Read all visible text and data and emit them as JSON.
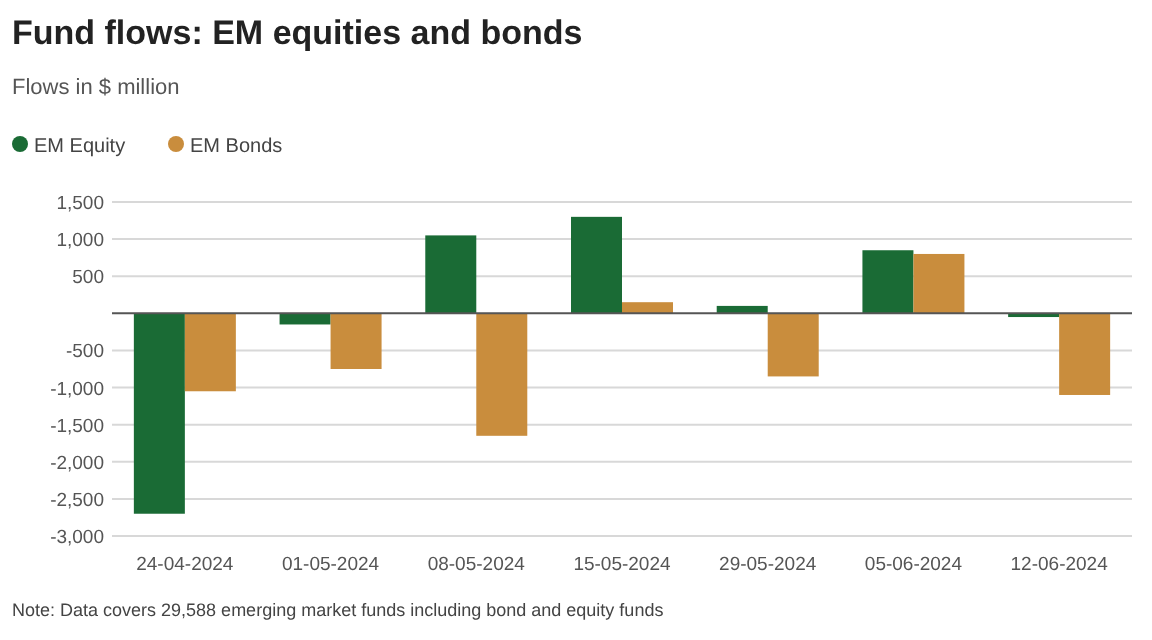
{
  "chart_data": {
    "type": "bar",
    "title": "Fund flows: EM equities and bonds",
    "subtitle": "Flows in $ million",
    "categories": [
      "24-04-2024",
      "01-05-2024",
      "08-05-2024",
      "15-05-2024",
      "29-05-2024",
      "05-06-2024",
      "12-06-2024"
    ],
    "series": [
      {
        "name": "EM Equity",
        "color": "#1a6b35",
        "values": [
          -2700,
          -150,
          1050,
          1300,
          100,
          850,
          -50
        ]
      },
      {
        "name": "EM Bonds",
        "color": "#c98d3d",
        "values": [
          -1050,
          -750,
          -1650,
          150,
          -850,
          800,
          -1100
        ]
      }
    ],
    "ylim": [
      -3000,
      1500
    ],
    "yticks": [
      {
        "value": -3000,
        "label": "-3,000"
      },
      {
        "value": -2500,
        "label": "-2,500"
      },
      {
        "value": -2000,
        "label": "-2,000"
      },
      {
        "value": -1500,
        "label": "-1,500"
      },
      {
        "value": -1000,
        "label": "-1,000"
      },
      {
        "value": -500,
        "label": "-500"
      },
      {
        "value": 0,
        "label": null
      },
      {
        "value": 500,
        "label": "500"
      },
      {
        "value": 1000,
        "label": "1,000"
      },
      {
        "value": 1500,
        "label": "1,500"
      }
    ],
    "grid": "y",
    "legend": "top left",
    "annotations": [
      "Note: Data covers 29,588 emerging market funds including bond and equity funds"
    ]
  }
}
